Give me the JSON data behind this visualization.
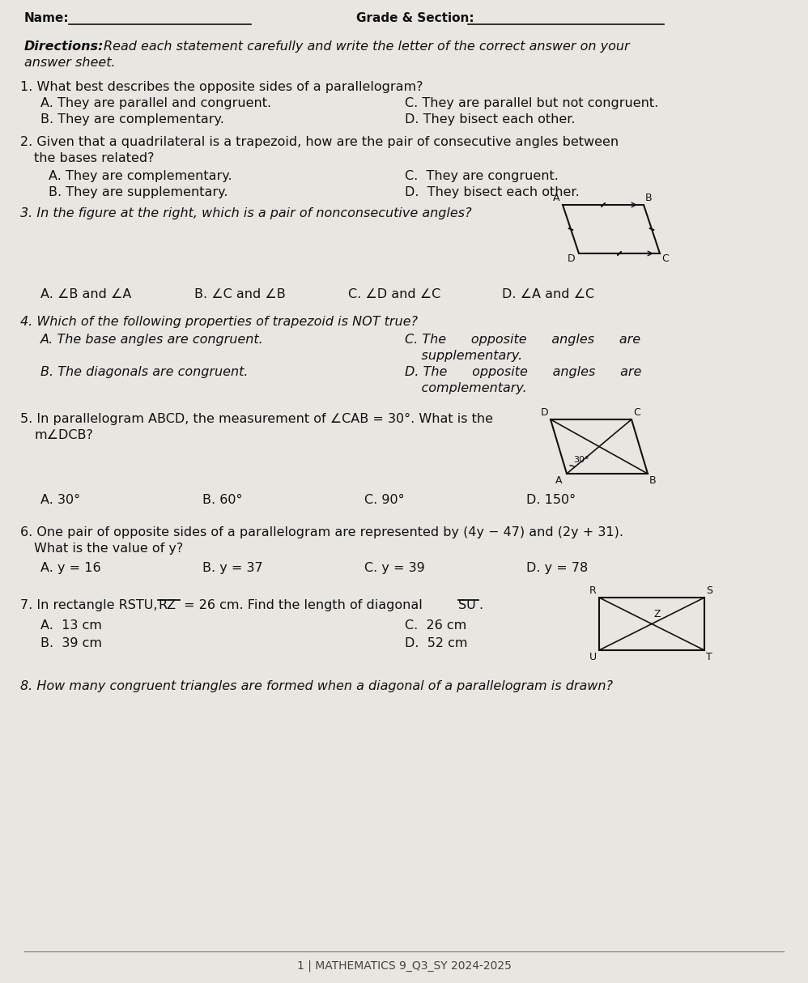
{
  "bg_color": "#e8e6e0",
  "text_color": "#1a1a1a",
  "title_line": "Name:_______________________          Grade & Section:_______________",
  "directions": "Directions: Read each statement carefully and write the letter of the correct answer on your\nanswer sheet.",
  "questions": [
    {
      "num": "1.",
      "text": "What best describes the opposite sides of a parallelogram?",
      "choices_left": [
        "A. They are parallel and congruent.",
        "B. They are complementary."
      ],
      "choices_right": [
        "C. They are parallel but not congruent.",
        "D. They bisect each other."
      ]
    },
    {
      "num": "2.",
      "text": "Given that a quadrilateral is a trapezoid, how are the pair of consecutive angles between\nthe bases related?",
      "choices_left": [
        "A. They are complementary.",
        "B. They are supplementary."
      ],
      "choices_right": [
        "C.  They are congruent.",
        "D.  They bisect each other."
      ]
    },
    {
      "num": "3.",
      "text": "In the figure at the right, which is a pair of nonconsecutive angles?",
      "choices_left": [
        "A. ∠B and ∠A",
        "B. ∠C and ∠B"
      ],
      "choices_right": [
        "C. ∠D and ∠C",
        "D. ∠A and ∠C"
      ]
    },
    {
      "num": "4.",
      "text": "Which of the following properties of trapezoid is NOT true?",
      "choices_left": [
        "A. The base angles are congruent.",
        "B. The diagonals are congruent."
      ],
      "choices_right": [
        "C. The      opposite      angles      are\n    supplementary.",
        "D. The      opposite      angles      are\n    complementary."
      ]
    },
    {
      "num": "5.",
      "text": "In parallelogram ABCD, the measurement of ∠CAB = 30°. What is the\nm∠DCB?",
      "choices_left": [
        "A. 30°",
        "B. 60°"
      ],
      "choices_right": [
        "C. 90°",
        "D. 150°"
      ]
    },
    {
      "num": "6.",
      "text": "One pair of opposite sides of a parallelogram are represented by (4y − 47) and (2y + 31).\nWhat is the value of y?",
      "choices_left": [
        "A. y = 16",
        "B. y = 37"
      ],
      "choices_right": [
        "C. y = 39",
        "D. y = 78"
      ]
    },
    {
      "num": "7.",
      "text": "In rectangle RSTU, $\\overline{RZ}$ = 26 cm. Find the length of diagonal $\\overline{SU}$.",
      "choices_left": [
        "A.  13 cm",
        "B.  39 cm"
      ],
      "choices_right": [
        "C.  26 cm",
        "D.  52 cm"
      ]
    },
    {
      "num": "8.",
      "text": "How many congruent triangles are formed when a diagonal of a parallelogram is drawn?",
      "choices_left": [],
      "choices_right": []
    }
  ],
  "footer": "1 | MATHEMATICS 9_Q3_SY 2024-2025"
}
